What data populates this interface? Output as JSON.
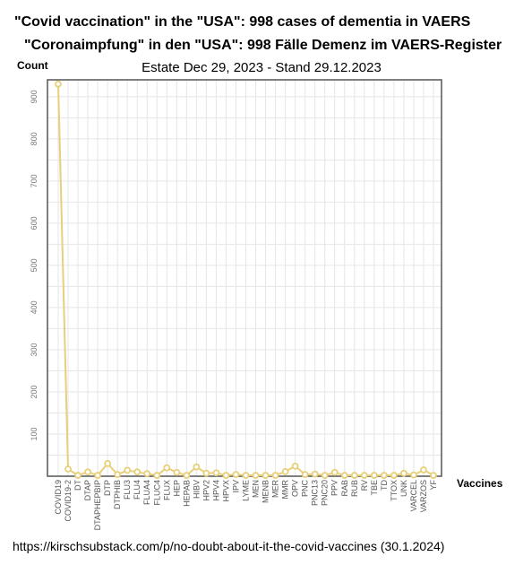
{
  "header": {
    "title_en": "\"Covid vaccination\" in the \"USA\": 998 cases of dementia in VAERS",
    "title_de": "\"Coronaimpfung\" in den \"USA\": 998 Fälle Demenz im VAERS-Register",
    "subtitle": "Estate Dec 29, 2023 - Stand 29.12.2023"
  },
  "footer": {
    "source": "https://kirschsubstack.com/p/no-doubt-about-it-the-covid-vaccines   (30.1.2024)"
  },
  "chart_data": {
    "type": "line",
    "xlabel": "Vaccines",
    "ylabel": "Count",
    "ylim": [
      0,
      940
    ],
    "yticks": [
      100,
      200,
      300,
      400,
      500,
      600,
      700,
      800,
      900
    ],
    "grid": true,
    "line_color": "#e8cf7a",
    "categories": [
      "COVID19",
      "COVID19-2",
      "DT",
      "DTAP",
      "DTAPHEPBIP",
      "DTP",
      "DTPHIB",
      "FLU3",
      "FLU4",
      "FLUA4",
      "FLUC4",
      "FLUX",
      "HEP",
      "HEPAB",
      "HIBV",
      "HPV2",
      "HPV4",
      "HPVX",
      "IPV",
      "LYME",
      "MEN",
      "MENB",
      "MER",
      "MMR",
      "OPV",
      "PNC",
      "PNC13",
      "PNC20",
      "PPV",
      "RAB",
      "RUB",
      "RV",
      "TBE",
      "TD",
      "TTOX",
      "UNK",
      "VARCEL",
      "VARZOS",
      "YF"
    ],
    "values": [
      930,
      17,
      2,
      10,
      2,
      30,
      4,
      14,
      10,
      6,
      2,
      20,
      9,
      2,
      22,
      7,
      8,
      2,
      4,
      2,
      2,
      2,
      2,
      11,
      24,
      4,
      5,
      2,
      9,
      2,
      2,
      2,
      2,
      2,
      2,
      7,
      3,
      15,
      2
    ]
  }
}
